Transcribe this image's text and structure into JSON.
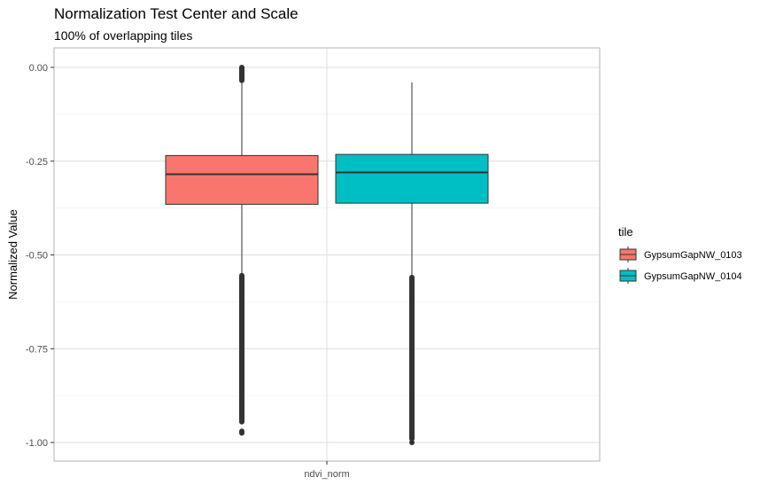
{
  "chart_data": {
    "type": "boxplot",
    "title": "Normalization Test Center and Scale",
    "subtitle": "100% of overlapping tiles",
    "xlabel": "",
    "ylabel": "Normalized Value",
    "categories": [
      "ndvi_norm"
    ],
    "ylim": [
      -1.04,
      0.04
    ],
    "yticks": [
      0.0,
      -0.25,
      -0.5,
      -0.75,
      -1.0
    ],
    "ytick_labels": [
      "0.00",
      "-0.25",
      "-0.50",
      "-0.75",
      "-1.00"
    ],
    "grid": true,
    "legend": {
      "title": "tile",
      "position": "right"
    },
    "series": [
      {
        "name": "GypsumGapNW_0103",
        "color": "#F8766D",
        "q1": -0.365,
        "median": -0.285,
        "q3": -0.235,
        "whisker_low": -0.555,
        "whisker_high": 0.0,
        "outlier_ranges": [
          [
            -0.945,
            -0.555
          ],
          [
            0.0,
            -0.035
          ]
        ],
        "outlier_points": [
          -0.97,
          -0.975
        ]
      },
      {
        "name": "GypsumGapNW_0104",
        "color": "#00BFC4",
        "q1": -0.362,
        "median": -0.28,
        "q3": -0.232,
        "whisker_low": -0.56,
        "whisker_high": -0.04,
        "outlier_ranges": [
          [
            -0.99,
            -0.56
          ]
        ],
        "outlier_points": [
          -1.0
        ]
      }
    ]
  }
}
